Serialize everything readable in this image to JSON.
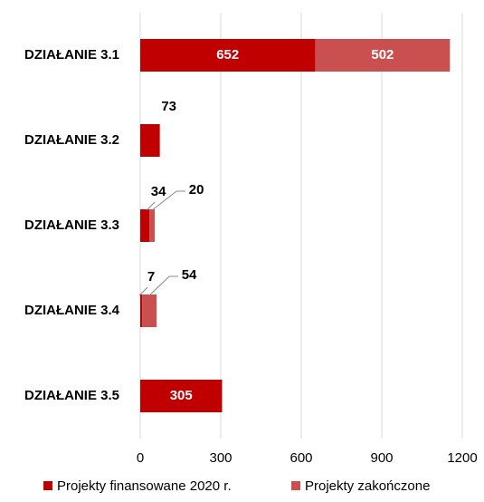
{
  "chart_data": {
    "type": "stacked-barh",
    "categories": [
      "DZIAŁANIE 3.1",
      "DZIAŁANIE 3.2",
      "DZIAŁANIE 3.3",
      "DZIAŁANIE 3.4",
      "DZIAŁANIE 3.5"
    ],
    "series": [
      {
        "name": "Projekty finansowane 2020 r.",
        "color": "#c00000",
        "values": [
          652,
          73,
          34,
          7,
          305
        ]
      },
      {
        "name": "Projekty zakończone",
        "color": "#c9504f",
        "values": [
          502,
          null,
          20,
          54,
          null
        ]
      }
    ],
    "xlim": [
      0,
      1200
    ],
    "xticks": [
      0,
      300,
      600,
      900,
      1200
    ],
    "grid": true,
    "legend": "bottom"
  }
}
